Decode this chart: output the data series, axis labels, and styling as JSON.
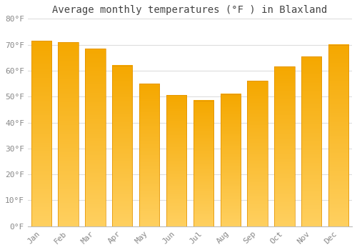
{
  "title": "Average monthly temperatures (°F ) in Blaxland",
  "months": [
    "Jan",
    "Feb",
    "Mar",
    "Apr",
    "May",
    "Jun",
    "Jul",
    "Aug",
    "Sep",
    "Oct",
    "Nov",
    "Dec"
  ],
  "values": [
    71.5,
    71.0,
    68.5,
    62.0,
    55.0,
    50.5,
    48.5,
    51.0,
    56.0,
    61.5,
    65.5,
    70.0
  ],
  "bar_color_top": "#F5A800",
  "bar_color_bottom": "#FFD060",
  "bar_edge_color": "#E09000",
  "background_color": "#FFFFFF",
  "plot_bg_color": "#FFFFFF",
  "grid_color": "#DDDDDD",
  "text_color": "#888888",
  "title_color": "#444444",
  "ylim": [
    0,
    80
  ],
  "ytick_step": 10,
  "title_fontsize": 10,
  "tick_fontsize": 8,
  "font_family": "monospace"
}
